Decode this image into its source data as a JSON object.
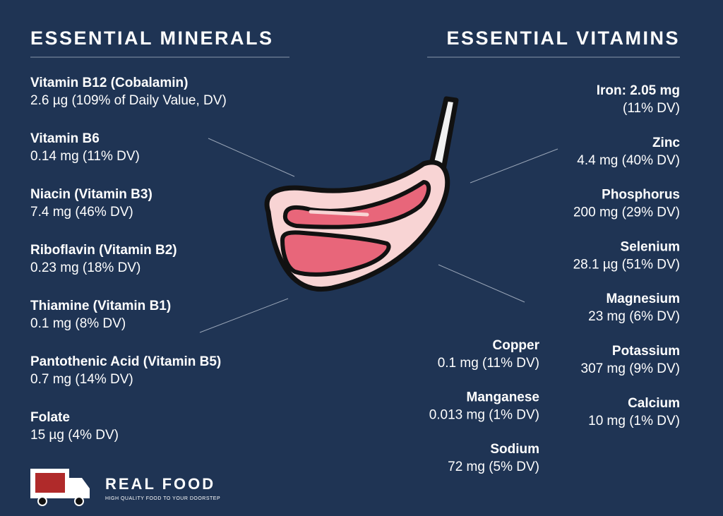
{
  "minerals": {
    "title": "ESSENTIAL MINERALS",
    "items": [
      {
        "name": "Vitamin B12 (Cobalamin)",
        "detail": "2.6 µg (109% of Daily Value, DV)"
      },
      {
        "name": "Vitamin B6",
        "detail": "0.14 mg (11% DV)"
      },
      {
        "name": "Niacin (Vitamin B3)",
        "detail": "7.4 mg (46% DV)"
      },
      {
        "name": "Riboflavin (Vitamin B2)",
        "detail": "0.23 mg (18% DV)"
      },
      {
        "name": "Thiamine (Vitamin B1)",
        "detail": "0.1 mg (8% DV)"
      },
      {
        "name": "Pantothenic Acid (Vitamin B5)",
        "detail": "0.7 mg (14% DV)"
      },
      {
        "name": "Folate",
        "detail": "15 µg (4% DV)"
      }
    ]
  },
  "vitamins": {
    "title": "ESSENTIAL VITAMINS",
    "items": [
      {
        "name": "Iron: 2.05 mg",
        "detail": "(11% DV)"
      },
      {
        "name": "Zinc",
        "detail": "4.4 mg (40% DV)"
      },
      {
        "name": "Phosphorus",
        "detail": "200 mg (29% DV)"
      },
      {
        "name": "Selenium",
        "detail": "28.1 µg (51% DV)"
      },
      {
        "name": "Magnesium",
        "detail": "23 mg (6% DV)"
      },
      {
        "name": "Potassium",
        "detail": "307 mg (9% DV)"
      },
      {
        "name": "Calcium",
        "detail": "10 mg (1% DV)"
      }
    ],
    "more": [
      {
        "name": "Copper",
        "detail": "0.1 mg (11% DV)"
      },
      {
        "name": "Manganese",
        "detail": "0.013 mg (1% DV)"
      },
      {
        "name": "Sodium",
        "detail": "72 mg (5% DV)"
      }
    ]
  },
  "logo": {
    "brand": "REAL FOOD",
    "tagline": "HIGH QUALITY FOOD TO YOUR DOORSTEP"
  }
}
